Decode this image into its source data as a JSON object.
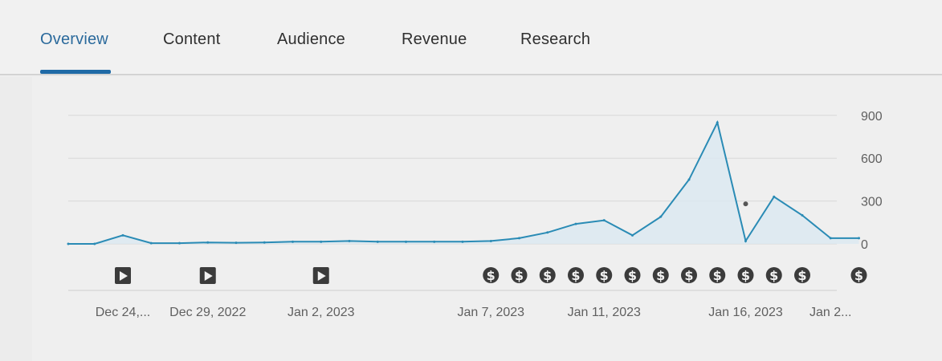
{
  "tabs": [
    {
      "label": "Overview",
      "active": true
    },
    {
      "label": "Content",
      "active": false
    },
    {
      "label": "Audience",
      "active": false
    },
    {
      "label": "Revenue",
      "active": false
    },
    {
      "label": "Research",
      "active": false
    }
  ],
  "colors": {
    "line": "#2a8bb5",
    "area": "#dbe9f1",
    "accent": "#1f6aa6",
    "marker_dark": "#3b3b3b"
  },
  "chart_data": {
    "type": "area",
    "y_axis": {
      "ticks": [
        0,
        300,
        600,
        900
      ],
      "ylim": [
        0,
        900
      ],
      "position": "right"
    },
    "x_tick_labels": [
      {
        "label": "Dec 24,...",
        "day": 0
      },
      {
        "label": "Dec 29, 2022",
        "day": 3
      },
      {
        "label": "Jan 2, 2023",
        "day": 7
      },
      {
        "label": "Jan 7, 2023",
        "day": 13
      },
      {
        "label": "Jan 11, 2023",
        "day": 17
      },
      {
        "label": "Jan 16, 2023",
        "day": 22
      },
      {
        "label": "Jan 2...",
        "day": 25
      }
    ],
    "x": [
      -2,
      -1,
      0,
      1,
      2,
      3,
      4,
      5,
      6,
      7,
      8,
      9,
      10,
      11,
      12,
      13,
      14,
      15,
      16,
      17,
      18,
      19,
      20,
      21,
      22,
      23,
      24,
      25,
      26
    ],
    "values": [
      0,
      0,
      60,
      5,
      5,
      10,
      8,
      10,
      15,
      15,
      20,
      15,
      15,
      15,
      15,
      20,
      40,
      80,
      140,
      165,
      60,
      190,
      450,
      850,
      20,
      330,
      200,
      40,
      40
    ],
    "video_markers": [
      0,
      3,
      7
    ],
    "revenue_markers": [
      13,
      14,
      15,
      16,
      17,
      18,
      19,
      20,
      21,
      22,
      23,
      24,
      26
    ],
    "annotation_dot": {
      "x": 22,
      "y": 280
    }
  }
}
